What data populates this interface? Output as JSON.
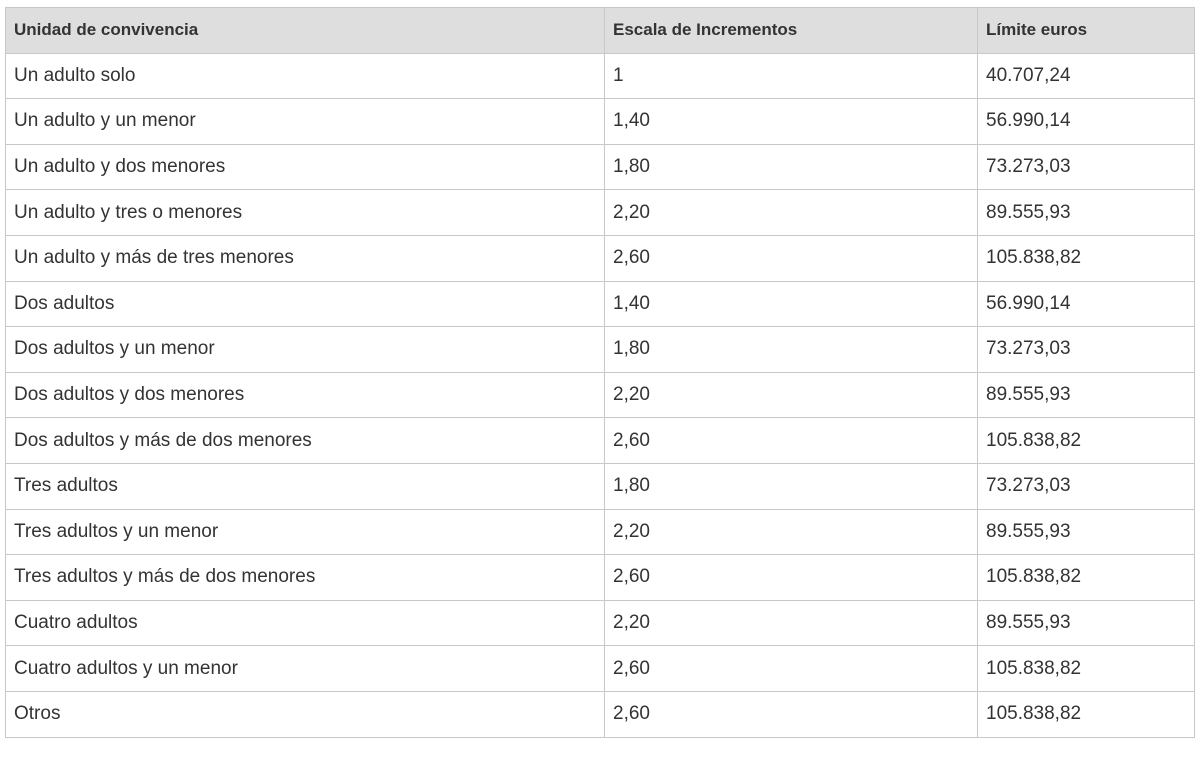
{
  "table": {
    "headers": [
      "Unidad de convivencia",
      "Escala de Incrementos",
      "Límite euros"
    ],
    "rows": [
      [
        "Un adulto solo",
        "1",
        "40.707,24"
      ],
      [
        "Un adulto y un menor",
        "1,40",
        "56.990,14"
      ],
      [
        "Un adulto y dos menores",
        "1,80",
        "73.273,03"
      ],
      [
        "Un adulto y tres o menores",
        "2,20",
        "89.555,93"
      ],
      [
        "Un adulto y más de tres menores",
        "2,60",
        "105.838,82"
      ],
      [
        "Dos adultos",
        "1,40",
        "56.990,14"
      ],
      [
        "Dos adultos y un menor",
        "1,80",
        "73.273,03"
      ],
      [
        "Dos adultos y dos menores",
        "2,20",
        "89.555,93"
      ],
      [
        "Dos adultos y más de dos menores",
        "2,60",
        "105.838,82"
      ],
      [
        "Tres adultos",
        "1,80",
        "73.273,03"
      ],
      [
        "Tres adultos y un menor",
        "2,20",
        "89.555,93"
      ],
      [
        "Tres adultos y más de dos menores",
        "2,60",
        "105.838,82"
      ],
      [
        "Cuatro adultos",
        "2,20",
        "89.555,93"
      ],
      [
        "Cuatro adultos y un menor",
        "2,60",
        "105.838,82"
      ],
      [
        "Otros",
        "2,60",
        "105.838,82"
      ]
    ]
  }
}
